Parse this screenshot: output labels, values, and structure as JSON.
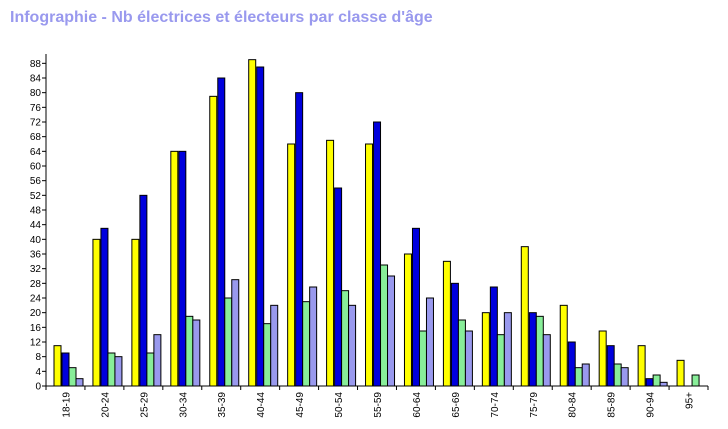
{
  "title": "Infographie - Nb électrices et électeurs par classe d'âge",
  "colors": {
    "title": "#9999ee",
    "series": [
      "#ffff00",
      "#0000dd",
      "#88ee99",
      "#9999ee"
    ],
    "outline": "#000000",
    "background": "#ffffff"
  },
  "chart_data": {
    "type": "bar",
    "title": "Infographie - Nb électrices et électeurs par classe d'âge",
    "xlabel": "",
    "ylabel": "",
    "grid": false,
    "legend": "none",
    "ylim": [
      0,
      90
    ],
    "yticks": [
      0,
      4,
      8,
      12,
      16,
      20,
      24,
      28,
      32,
      36,
      40,
      44,
      48,
      52,
      56,
      60,
      64,
      68,
      72,
      76,
      80,
      84,
      88
    ],
    "categories": [
      "18-19",
      "20-24",
      "25-29",
      "30-34",
      "35-39",
      "40-44",
      "45-49",
      "50-54",
      "55-59",
      "60-64",
      "65-69",
      "70-74",
      "75-79",
      "80-84",
      "85-89",
      "90-94",
      "95+"
    ],
    "series": [
      {
        "values": [
          11,
          40,
          40,
          64,
          79,
          89,
          66,
          67,
          66,
          36,
          34,
          20,
          38,
          22,
          15,
          11,
          7
        ]
      },
      {
        "values": [
          9,
          43,
          52,
          64,
          84,
          87,
          80,
          54,
          72,
          43,
          28,
          27,
          20,
          12,
          11,
          2,
          0
        ]
      },
      {
        "values": [
          5,
          9,
          9,
          19,
          24,
          17,
          23,
          26,
          33,
          15,
          18,
          14,
          19,
          5,
          6,
          3,
          3
        ]
      },
      {
        "values": [
          2,
          8,
          14,
          18,
          29,
          22,
          27,
          22,
          30,
          24,
          15,
          20,
          14,
          6,
          5,
          1,
          0
        ]
      }
    ]
  }
}
